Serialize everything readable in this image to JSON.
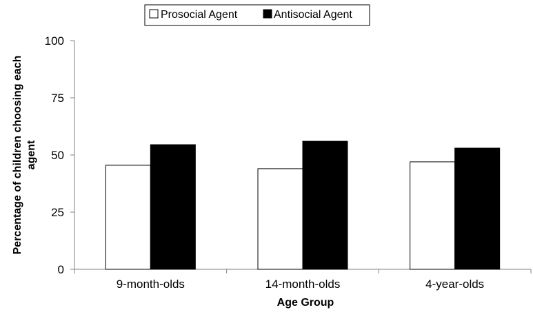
{
  "chart_data": {
    "type": "bar",
    "title": "",
    "xlabel": "Age Group",
    "ylabel_lines": [
      "Percentage of children choosing each",
      "agent"
    ],
    "categories": [
      "9-month-olds",
      "14-month-olds",
      "4-year-olds"
    ],
    "series": [
      {
        "name": "Prosocial Agent",
        "color": "#ffffff",
        "values": [
          45.5,
          44,
          47
        ]
      },
      {
        "name": "Antisocial Agent",
        "color": "#000000",
        "values": [
          54.5,
          56,
          53
        ]
      }
    ],
    "ylim": [
      0,
      100
    ],
    "yticks": [
      0,
      25,
      50,
      75,
      100
    ],
    "ytick_labels": [
      "0",
      "25",
      "50",
      "75",
      "100"
    ],
    "grid": false,
    "legend_position": "top"
  }
}
